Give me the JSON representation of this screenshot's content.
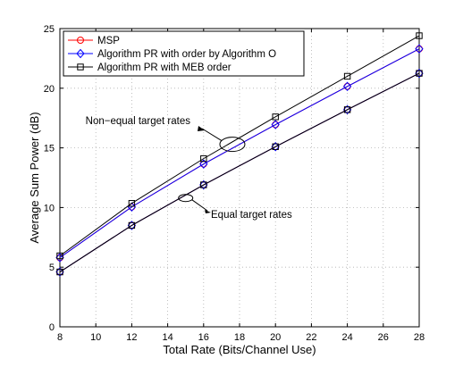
{
  "chart_data": {
    "type": "line",
    "title": "",
    "xlabel": "Total Rate (Bits/Channel Use)",
    "ylabel": "Average Sum Power (dB)",
    "xlim": [
      8,
      28
    ],
    "ylim": [
      0,
      25
    ],
    "xticks": [
      8,
      10,
      12,
      14,
      16,
      18,
      20,
      22,
      24,
      26,
      28
    ],
    "yticks": [
      0,
      5,
      10,
      15,
      20,
      25
    ],
    "grid": true,
    "legend_position": "top-left",
    "x": [
      8,
      12,
      16,
      20,
      24,
      28
    ],
    "series": [
      {
        "name": "MSP",
        "group": "Non-equal target rates",
        "color": "#ff0000",
        "marker": "circle",
        "values": [
          5.8,
          10.05,
          13.65,
          16.95,
          20.15,
          23.3
        ]
      },
      {
        "name": "Algorithm PR with order by Algorithm O",
        "group": "Non-equal target rates",
        "color": "#0000ff",
        "marker": "diamond",
        "values": [
          5.8,
          10.05,
          13.65,
          16.95,
          20.15,
          23.3
        ]
      },
      {
        "name": "Algorithm PR with MEB order",
        "group": "Non-equal target rates",
        "color": "#000000",
        "marker": "square",
        "values": [
          5.95,
          10.35,
          14.1,
          17.6,
          21.0,
          24.4
        ]
      },
      {
        "name": "MSP",
        "group": "Equal target rates",
        "color": "#ff0000",
        "marker": "circle",
        "values": [
          4.6,
          8.5,
          11.9,
          15.1,
          18.2,
          21.25
        ]
      },
      {
        "name": "Algorithm PR with order by Algorithm O",
        "group": "Equal target rates",
        "color": "#0000ff",
        "marker": "diamond",
        "values": [
          4.6,
          8.5,
          11.9,
          15.1,
          18.2,
          21.25
        ]
      },
      {
        "name": "Algorithm PR with MEB order",
        "group": "Equal target rates",
        "color": "#000000",
        "marker": "square",
        "values": [
          4.6,
          8.5,
          11.9,
          15.1,
          18.2,
          21.25
        ]
      }
    ],
    "legend": [
      {
        "label": "MSP",
        "color": "#ff0000",
        "marker": "circle"
      },
      {
        "label": "Algorithm PR with order by Algorithm O",
        "color": "#0000ff",
        "marker": "diamond"
      },
      {
        "label": "Algorithm PR with MEB order",
        "color": "#000000",
        "marker": "square"
      }
    ],
    "annotations": [
      {
        "text": "Non−equal target rates",
        "target_x": 17.6,
        "target_y": 15.3
      },
      {
        "text": "Equal target rates",
        "target_x": 15.0,
        "target_y": 10.8
      }
    ]
  }
}
